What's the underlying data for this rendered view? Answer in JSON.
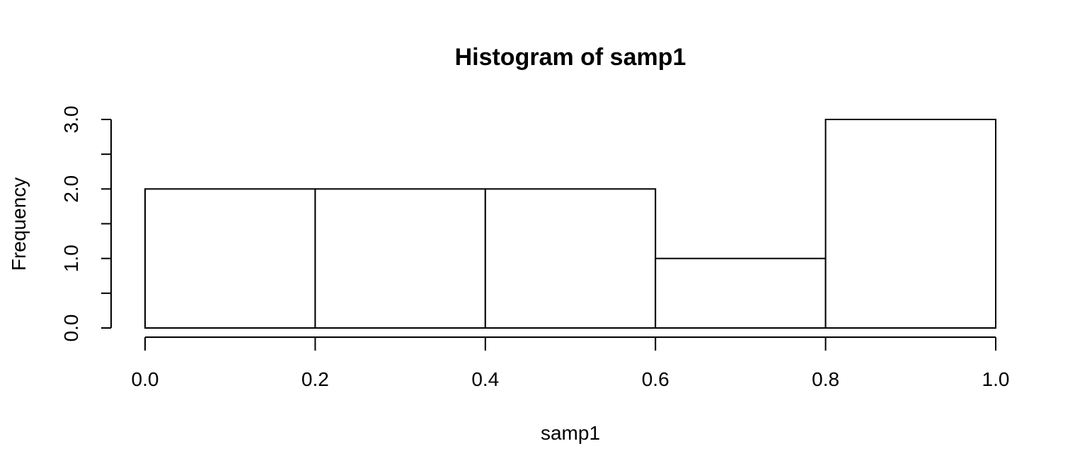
{
  "chart_data": {
    "type": "bar",
    "title": "Histogram of samp1",
    "xlabel": "samp1",
    "ylabel": "Frequency",
    "bins": [
      {
        "start": 0.0,
        "end": 0.2,
        "value": 2
      },
      {
        "start": 0.2,
        "end": 0.4,
        "value": 2
      },
      {
        "start": 0.4,
        "end": 0.6,
        "value": 2
      },
      {
        "start": 0.6,
        "end": 0.8,
        "value": 1
      },
      {
        "start": 0.8,
        "end": 1.0,
        "value": 3
      }
    ],
    "xlim": [
      0.0,
      1.0
    ],
    "ylim": [
      0.0,
      3.0
    ],
    "x_ticks": [
      0.0,
      0.2,
      0.4,
      0.6,
      0.8,
      1.0
    ],
    "x_tick_labels": [
      "0.0",
      "0.2",
      "0.4",
      "0.6",
      "0.8",
      "1.0"
    ],
    "y_ticks": [
      0.0,
      0.5,
      1.0,
      1.5,
      2.0,
      2.5,
      3.0
    ],
    "y_tick_labels": [
      "0.0",
      "",
      "1.0",
      "",
      "2.0",
      "",
      "3.0"
    ],
    "grid": false,
    "legend": "none",
    "colors": {
      "bar_fill": "#ffffff",
      "bar_stroke": "#000000",
      "axis": "#000000",
      "text": "#000000"
    }
  }
}
